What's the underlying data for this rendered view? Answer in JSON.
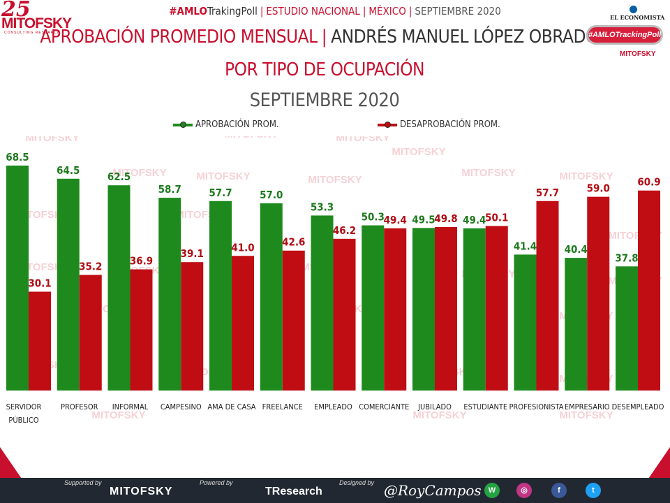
{
  "header": {
    "logo_25": "25",
    "logo_name": "MITOFSKY",
    "logo_sub": "CONSULTING RESEARCH",
    "hashtag_prefix": "#AMLO",
    "hashtag_suffix": "TrakingPoll",
    "study": "ESTUDIO NACIONAL",
    "country": "MÉXICO",
    "period": "SEPTIEMBRE 2020"
  },
  "right_logo": {
    "publisher": "EL ECONOMISTA",
    "pill": "#AMLOTrackingPoll",
    "brand": "MITOFSKY"
  },
  "title": {
    "line1_red": "APROBACIÓN PROMEDIO MENSUAL",
    "line1_dark": "ANDRÉS MANUEL LÓPEZ OBRADOR",
    "line2": "POR TIPO DE OCUPACIÓN",
    "line3": "SEPTIEMBRE 2020"
  },
  "watermark": "MITOFSKY",
  "colors": {
    "approve": "#1e8a1e",
    "disapprove": "#c00d14",
    "approve_label": "#1e7a1e",
    "disapprove_label": "#b00d14"
  },
  "chart_data": {
    "type": "bar",
    "categories": [
      "SERVIDOR PÚBLICO",
      "PROFESOR",
      "INFORMAL",
      "CAMPESINO",
      "AMA DE CASA",
      "FREELANCE",
      "EMPLEADO",
      "COMERCIANTE",
      "JUBILADO",
      "ESTUDIANTE",
      "PROFESIONISTA",
      "EMPRESARIO",
      "DESEMPLEADO"
    ],
    "series": [
      {
        "name": "APROBACIÓN PROM.",
        "values": [
          68.5,
          64.5,
          62.5,
          58.7,
          57.7,
          57.0,
          53.3,
          50.3,
          49.5,
          49.4,
          41.4,
          40.4,
          37.8
        ]
      },
      {
        "name": "DESAPROBACIÓN PROM.",
        "values": [
          30.1,
          35.2,
          36.9,
          39.1,
          41.0,
          42.6,
          46.2,
          49.4,
          49.8,
          50.1,
          57.7,
          59.0,
          60.9
        ]
      }
    ],
    "ylim": [
      0,
      70
    ],
    "grid": false,
    "legend": "top"
  },
  "footer": {
    "supported_label": "Supported by",
    "supported_brand": "MITOFSKY",
    "powered_label": "Powered by",
    "powered_brand": "TResearch",
    "designed_label": "Designed by",
    "designer": "@RoyCampos"
  }
}
